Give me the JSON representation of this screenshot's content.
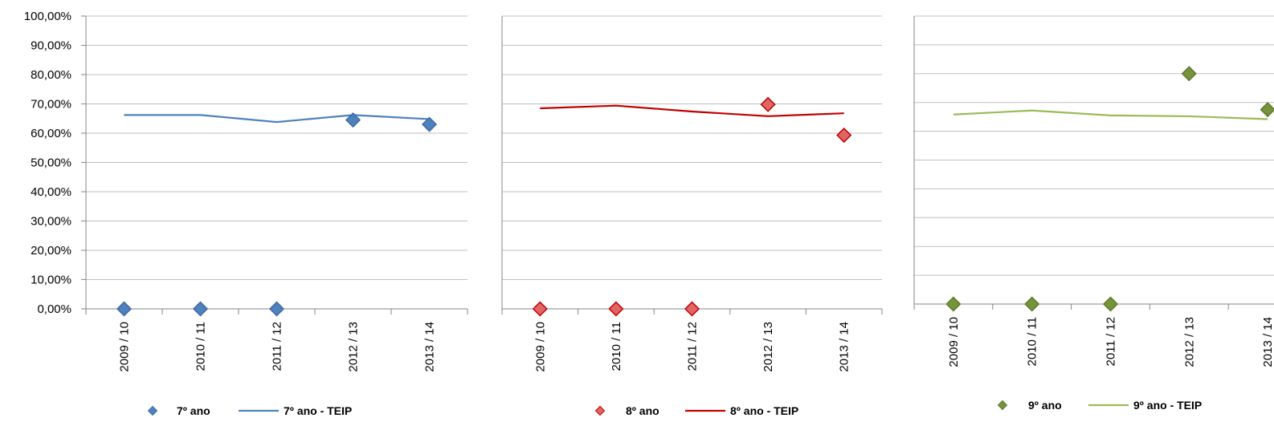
{
  "chart_data": [
    {
      "type": "line",
      "categories": [
        "2009 / 10",
        "2010 / 11",
        "2011 / 12",
        "2012 / 13",
        "2013 / 14"
      ],
      "ylim": [
        0,
        100
      ],
      "yticks": [
        "0,00%",
        "10,00%",
        "20,00%",
        "30,00%",
        "40,00%",
        "50,00%",
        "60,00%",
        "70,00%",
        "80,00%",
        "90,00%",
        "100,00%"
      ],
      "grid": true,
      "legend_placement": "bottom",
      "series": [
        {
          "name": "7º ano",
          "marker": "diamond",
          "color": "#4F81BD",
          "stroke": "#3C6BA5",
          "values": [
            0,
            0,
            0,
            64.5,
            63.0
          ]
        },
        {
          "name": "7º ano - TEIP",
          "marker": "line",
          "color": "#4F81BD",
          "values": [
            66.2,
            66.2,
            63.8,
            66.2,
            64.8
          ]
        }
      ]
    },
    {
      "type": "line",
      "categories": [
        "2009 / 10",
        "2010 / 11",
        "2011 / 12",
        "2012 / 13",
        "2013 / 14"
      ],
      "ylim": [
        0,
        100
      ],
      "grid": true,
      "legend_placement": "bottom",
      "series": [
        {
          "name": "8º ano",
          "marker": "diamond",
          "color": "#E06666",
          "stroke": "#C00000",
          "values": [
            0,
            0,
            0,
            69.8,
            59.3
          ]
        },
        {
          "name": "8º ano - TEIP",
          "marker": "line",
          "color": "#C00000",
          "values": [
            68.5,
            69.4,
            67.4,
            65.8,
            66.8
          ]
        }
      ]
    },
    {
      "type": "line",
      "categories": [
        "2009 / 10",
        "2010 / 11",
        "2011 / 12",
        "2012 / 13",
        "2013 / 14"
      ],
      "ylim": [
        0,
        100
      ],
      "grid": true,
      "legend_placement": "bottom",
      "series": [
        {
          "name": "9º ano",
          "marker": "diamond",
          "color": "#77933C",
          "stroke": "#5E7A2A",
          "values": [
            0,
            0,
            0,
            80.0,
            67.5
          ]
        },
        {
          "name": "9º ano - TEIP",
          "marker": "line",
          "color": "#9BBB59",
          "values": [
            65.8,
            67.2,
            65.5,
            65.2,
            64.2
          ]
        }
      ]
    }
  ]
}
